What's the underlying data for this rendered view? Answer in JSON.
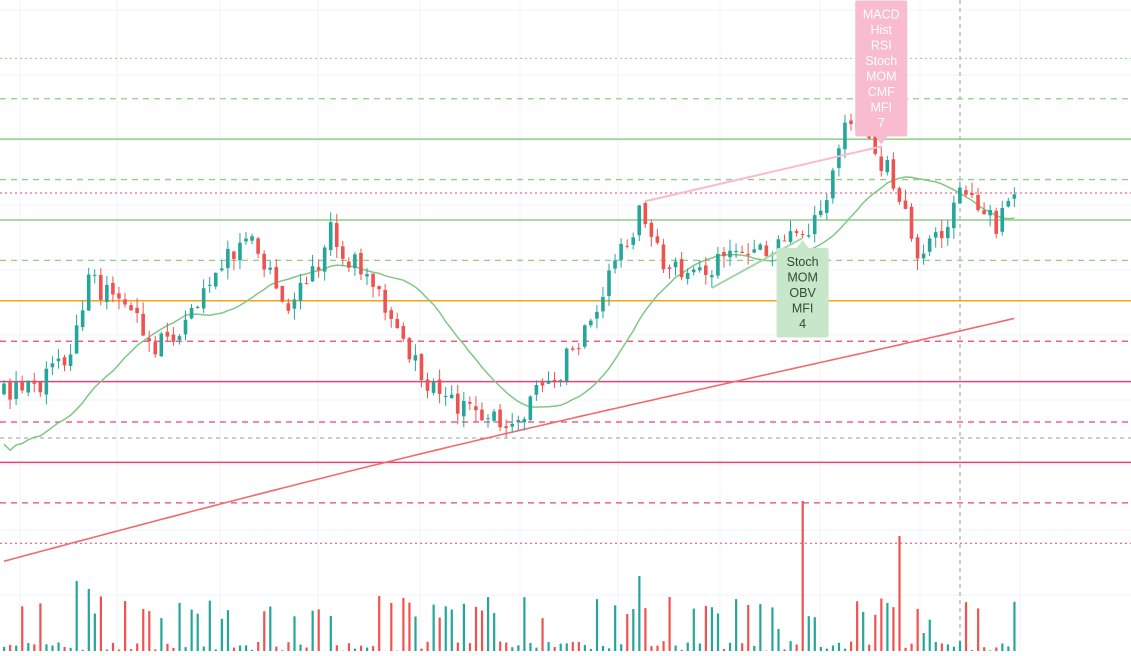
{
  "chart_data": {
    "type": "candlestick",
    "colors": {
      "up": "#26a69a",
      "down": "#ef5350",
      "grid": "#f0f3fa",
      "ma_short": "#81c784",
      "ma_long": "#f06b6b",
      "level_orange": "#f7a21b",
      "level_green": "#8fcf85",
      "level_pink": "#ec407a",
      "label_pink": "#f8bbd0",
      "label_green": "#c8e6c9",
      "divergence_pink": "#f8bbd0",
      "divergence_green": "#a5d6a7"
    },
    "levels": [
      {
        "price": 192,
        "style": "dotted",
        "color": "green"
      },
      {
        "price": 183,
        "style": "dashed",
        "color": "green"
      },
      {
        "price": 174,
        "style": "solid",
        "color": "green"
      },
      {
        "price": 165,
        "style": "dashed",
        "color": "green"
      },
      {
        "price": 162,
        "style": "dotted",
        "color": "pink"
      },
      {
        "price": 156,
        "style": "solid",
        "color": "green"
      },
      {
        "price": 147,
        "style": "dashed",
        "color": "green"
      },
      {
        "price": 138,
        "style": "solid",
        "color": "orange"
      },
      {
        "price": 129,
        "style": "dashed",
        "color": "pink"
      },
      {
        "price": 120,
        "style": "solid",
        "color": "pink"
      },
      {
        "price": 111,
        "style": "dashed",
        "color": "pink"
      },
      {
        "price": 102,
        "style": "solid",
        "color": "pink"
      },
      {
        "price": 93,
        "style": "dashed",
        "color": "pink"
      },
      {
        "price": 84,
        "style": "dotted",
        "color": "pink"
      }
    ],
    "annotations": [
      {
        "text": "MACD\nHist\nRSI\nStoch\nMOM\nCMF\nMFI\n7",
        "kind": "bearish",
        "candle_index": 145
      },
      {
        "text": "Stoch\nMOM\nOBV\nMFI\n4",
        "kind": "bullish",
        "candle_index": 132
      }
    ]
  }
}
